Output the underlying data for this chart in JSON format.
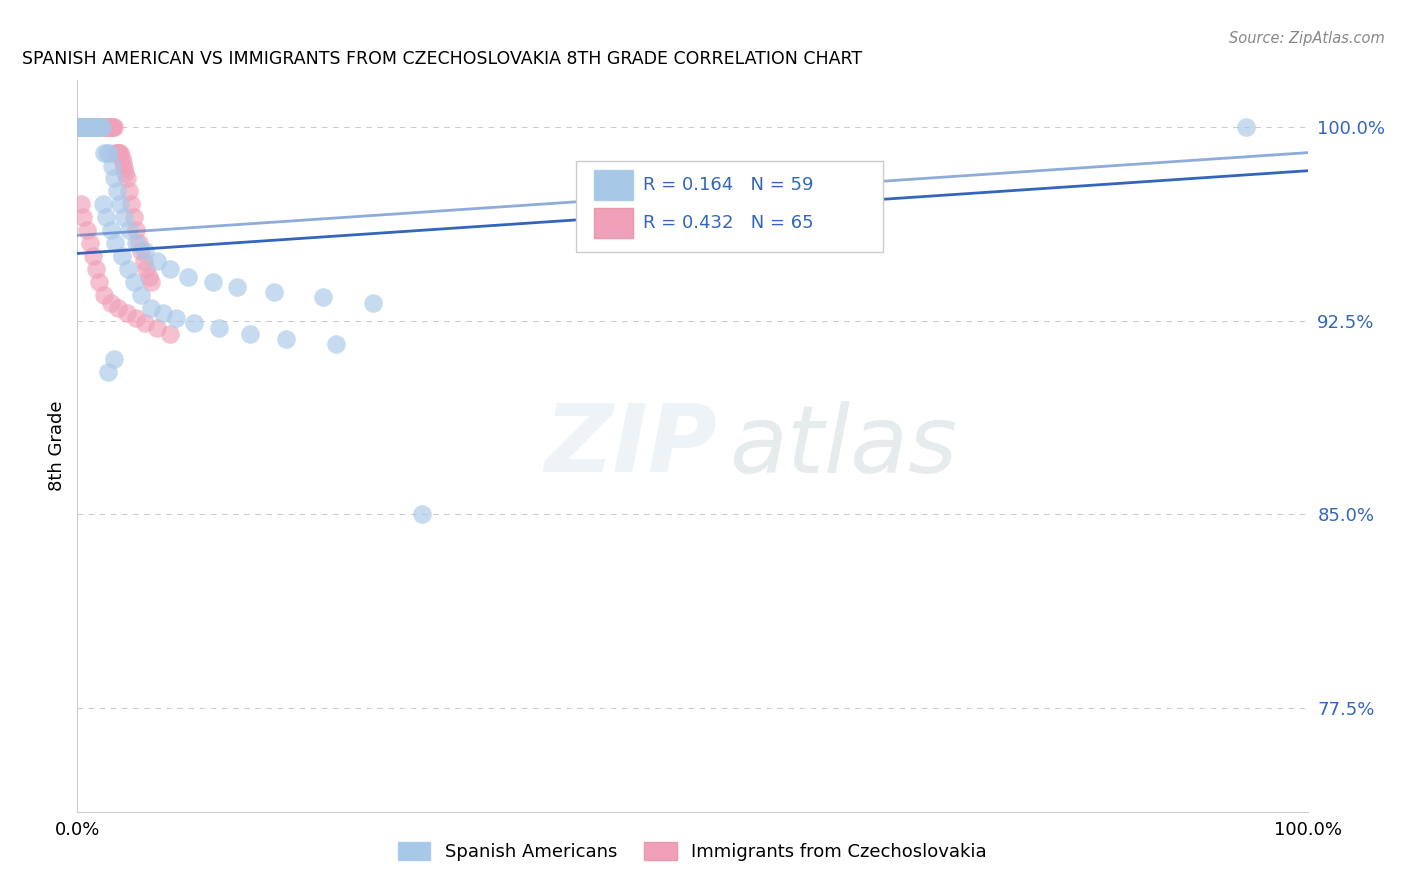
{
  "title": "SPANISH AMERICAN VS IMMIGRANTS FROM CZECHOSLOVAKIA 8TH GRADE CORRELATION CHART",
  "source": "Source: ZipAtlas.com",
  "ylabel": "8th Grade",
  "xlim": [
    0.0,
    1.0
  ],
  "ylim": [
    0.735,
    1.018
  ],
  "yticks": [
    0.775,
    0.85,
    0.925,
    1.0
  ],
  "ytick_labels": [
    "77.5%",
    "85.0%",
    "92.5%",
    "100.0%"
  ],
  "xticks": [
    0.0,
    0.25,
    0.5,
    0.75,
    1.0
  ],
  "xtick_labels": [
    "0.0%",
    "",
    "",
    "",
    "100.0%"
  ],
  "blue_R": 0.164,
  "blue_N": 59,
  "pink_R": 0.432,
  "pink_N": 65,
  "blue_color": "#a8c8e8",
  "pink_color": "#f0a0b8",
  "trend_color": "#3366bb",
  "legend_label_blue": "Spanish Americans",
  "legend_label_pink": "Immigrants from Czechoslovakia",
  "blue_scatter_x": [
    0.001,
    0.002,
    0.003,
    0.004,
    0.005,
    0.006,
    0.007,
    0.008,
    0.009,
    0.01,
    0.011,
    0.012,
    0.013,
    0.014,
    0.015,
    0.016,
    0.017,
    0.018,
    0.019,
    0.02,
    0.022,
    0.024,
    0.026,
    0.028,
    0.03,
    0.032,
    0.035,
    0.038,
    0.042,
    0.048,
    0.055,
    0.065,
    0.075,
    0.09,
    0.11,
    0.13,
    0.16,
    0.2,
    0.24,
    0.021,
    0.023,
    0.027,
    0.031,
    0.036,
    0.041,
    0.046,
    0.052,
    0.06,
    0.07,
    0.08,
    0.095,
    0.115,
    0.14,
    0.17,
    0.21,
    0.03,
    0.025,
    0.28,
    0.95
  ],
  "blue_scatter_y": [
    1.0,
    1.0,
    1.0,
    1.0,
    1.0,
    1.0,
    1.0,
    1.0,
    1.0,
    1.0,
    1.0,
    1.0,
    1.0,
    1.0,
    1.0,
    1.0,
    1.0,
    1.0,
    1.0,
    1.0,
    0.99,
    0.99,
    0.99,
    0.985,
    0.98,
    0.975,
    0.97,
    0.965,
    0.96,
    0.955,
    0.952,
    0.948,
    0.945,
    0.942,
    0.94,
    0.938,
    0.936,
    0.934,
    0.932,
    0.97,
    0.965,
    0.96,
    0.955,
    0.95,
    0.945,
    0.94,
    0.935,
    0.93,
    0.928,
    0.926,
    0.924,
    0.922,
    0.92,
    0.918,
    0.916,
    0.91,
    0.905,
    0.85,
    1.0
  ],
  "pink_scatter_x": [
    0.001,
    0.002,
    0.003,
    0.004,
    0.005,
    0.006,
    0.007,
    0.008,
    0.009,
    0.01,
    0.011,
    0.012,
    0.013,
    0.014,
    0.015,
    0.016,
    0.017,
    0.018,
    0.019,
    0.02,
    0.021,
    0.022,
    0.023,
    0.024,
    0.025,
    0.026,
    0.027,
    0.028,
    0.029,
    0.03,
    0.031,
    0.032,
    0.033,
    0.034,
    0.035,
    0.036,
    0.037,
    0.038,
    0.039,
    0.04,
    0.042,
    0.044,
    0.046,
    0.048,
    0.05,
    0.052,
    0.054,
    0.056,
    0.058,
    0.06,
    0.003,
    0.005,
    0.008,
    0.01,
    0.013,
    0.015,
    0.018,
    0.022,
    0.027,
    0.033,
    0.04,
    0.048,
    0.055,
    0.065,
    0.075
  ],
  "pink_scatter_y": [
    1.0,
    1.0,
    1.0,
    1.0,
    1.0,
    1.0,
    1.0,
    1.0,
    1.0,
    1.0,
    1.0,
    1.0,
    1.0,
    1.0,
    1.0,
    1.0,
    1.0,
    1.0,
    1.0,
    1.0,
    1.0,
    1.0,
    1.0,
    1.0,
    1.0,
    1.0,
    1.0,
    1.0,
    1.0,
    1.0,
    0.99,
    0.99,
    0.99,
    0.99,
    0.99,
    0.988,
    0.986,
    0.984,
    0.982,
    0.98,
    0.975,
    0.97,
    0.965,
    0.96,
    0.955,
    0.952,
    0.948,
    0.945,
    0.942,
    0.94,
    0.97,
    0.965,
    0.96,
    0.955,
    0.95,
    0.945,
    0.94,
    0.935,
    0.932,
    0.93,
    0.928,
    0.926,
    0.924,
    0.922,
    0.92
  ],
  "trend_blue_x0": 0.0,
  "trend_blue_y0": 0.951,
  "trend_blue_x1": 1.0,
  "trend_blue_y1": 0.983,
  "trend_pink_x0": 0.0,
  "trend_pink_y0": 0.965,
  "trend_pink_x1": 0.12,
  "trend_pink_y1": 0.985,
  "watermark_zip": "ZIP",
  "watermark_atlas": "atlas"
}
